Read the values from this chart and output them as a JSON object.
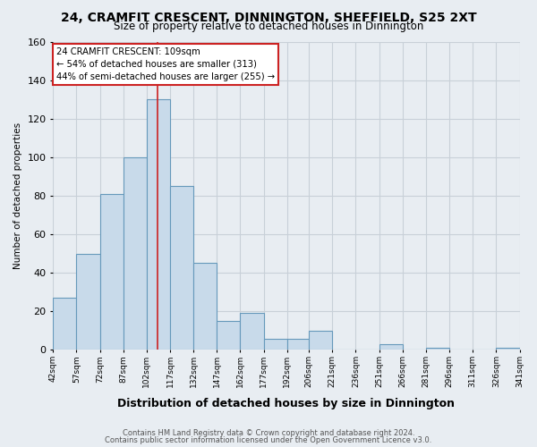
{
  "title1": "24, CRAMFIT CRESCENT, DINNINGTON, SHEFFIELD, S25 2XT",
  "title2": "Size of property relative to detached houses in Dinnington",
  "xlabel": "Distribution of detached houses by size in Dinnington",
  "ylabel": "Number of detached properties",
  "bar_edges": [
    42,
    57,
    72,
    87,
    102,
    117,
    132,
    147,
    162,
    177,
    192,
    206,
    221,
    236,
    251,
    266,
    281,
    296,
    311,
    326,
    341
  ],
  "bar_heights": [
    27,
    50,
    81,
    100,
    130,
    85,
    45,
    15,
    19,
    6,
    6,
    10,
    0,
    0,
    3,
    0,
    1,
    0,
    0,
    1
  ],
  "bar_color": "#c8daea",
  "bar_edge_color": "#6699bb",
  "property_line_x": 109,
  "property_line_color": "#cc2222",
  "ylim": [
    0,
    160
  ],
  "yticks": [
    0,
    20,
    40,
    60,
    80,
    100,
    120,
    140,
    160
  ],
  "tick_labels": [
    "42sqm",
    "57sqm",
    "72sqm",
    "87sqm",
    "102sqm",
    "117sqm",
    "132sqm",
    "147sqm",
    "162sqm",
    "177sqm",
    "192sqm",
    "206sqm",
    "221sqm",
    "236sqm",
    "251sqm",
    "266sqm",
    "281sqm",
    "296sqm",
    "311sqm",
    "326sqm",
    "341sqm"
  ],
  "annotation_title": "24 CRAMFIT CRESCENT: 109sqm",
  "annotation_line1": "← 54% of detached houses are smaller (313)",
  "annotation_line2": "44% of semi-detached houses are larger (255) →",
  "annotation_box_color": "#ffffff",
  "annotation_box_edge": "#cc2222",
  "footer1": "Contains HM Land Registry data © Crown copyright and database right 2024.",
  "footer2": "Contains public sector information licensed under the Open Government Licence v3.0.",
  "bg_color": "#e8edf2",
  "plot_bg_color": "#e8edf2",
  "grid_color": "#c8d0d8",
  "title1_fontsize": 10,
  "title2_fontsize": 8.5,
  "xlabel_fontsize": 9,
  "ylabel_fontsize": 7.5,
  "ytick_fontsize": 8,
  "xtick_fontsize": 6.5
}
